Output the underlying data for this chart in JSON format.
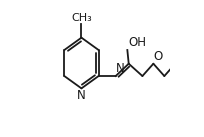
{
  "bg_color": "#ffffff",
  "line_color": "#1a1a1a",
  "line_width": 1.3,
  "font_size": 8.5,
  "figsize": [
    2.04,
    1.37
  ],
  "dpi": 100,
  "xlim": [
    0.0,
    1.0
  ],
  "ylim": [
    0.0,
    1.0
  ]
}
